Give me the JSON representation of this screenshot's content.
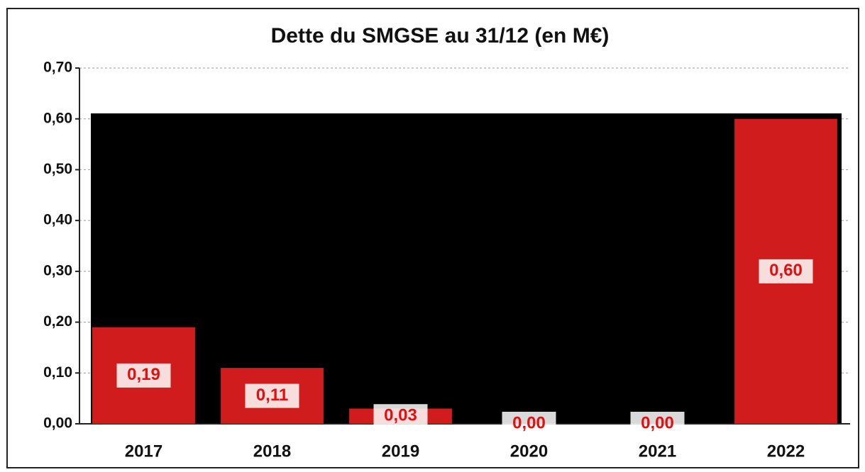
{
  "chart_data": {
    "type": "bar",
    "title": "Dette du SMGSE au 31/12 (en M€)",
    "categories": [
      "2017",
      "2018",
      "2019",
      "2020",
      "2021",
      "2022"
    ],
    "values": [
      0.19,
      0.11,
      0.03,
      0,
      0,
      0.6
    ],
    "value_labels": [
      "0,19",
      "0,11",
      "0,03",
      "0,00",
      "0,00",
      "0,60"
    ],
    "color": "#d01c1c",
    "ylim": [
      0,
      0.7
    ],
    "yticks": [
      {
        "value": 0,
        "label": "0,00"
      },
      {
        "value": 0.1,
        "label": "0,10"
      },
      {
        "value": 0.2,
        "label": "0,20"
      },
      {
        "value": 0.3,
        "label": "0,30"
      },
      {
        "value": 0.4,
        "label": "0,40"
      },
      {
        "value": 0.5,
        "label": "0,50"
      },
      {
        "value": 0.6,
        "label": "0,60"
      },
      {
        "value": 0.7,
        "label": "0,70"
      }
    ],
    "grid": true
  }
}
